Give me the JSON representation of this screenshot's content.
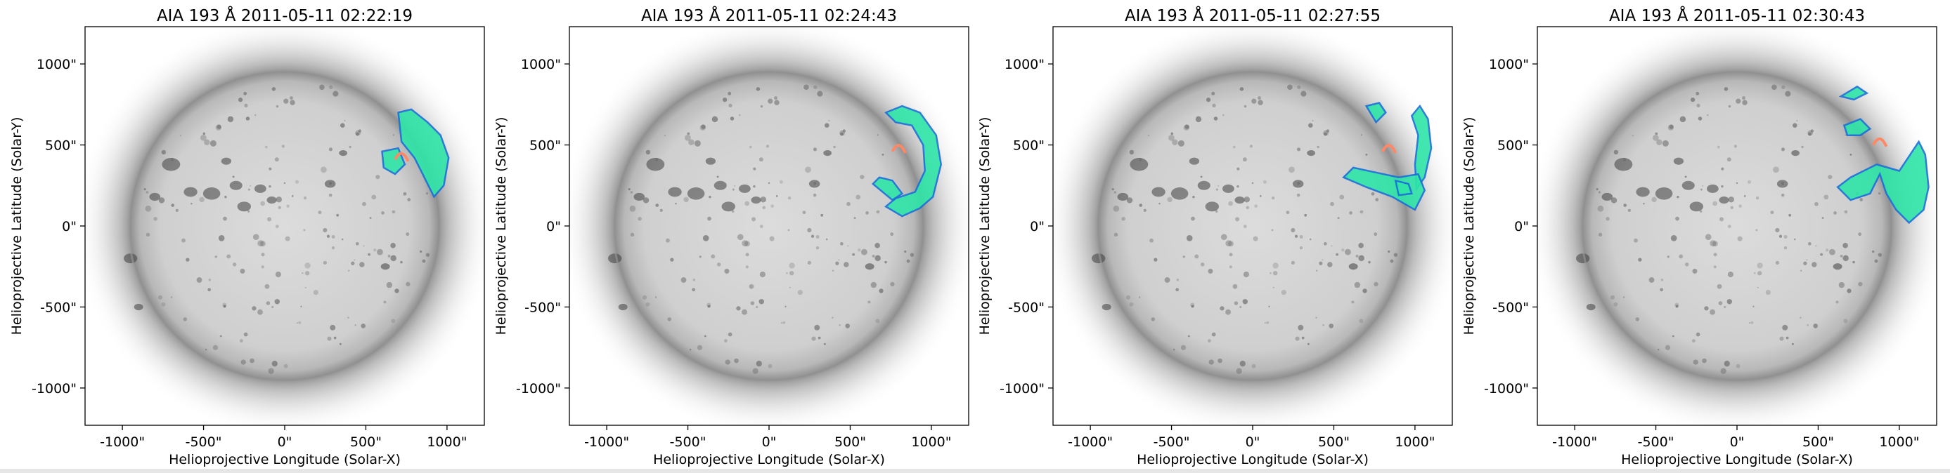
{
  "panels": [
    {
      "title": "AIA 193 Å 2011-05-11 02:22:19",
      "stage": 0
    },
    {
      "title": "AIA 193 Å 2011-05-11 02:24:43",
      "stage": 1
    },
    {
      "title": "AIA 193 Å 2011-05-11 02:27:55",
      "stage": 2
    },
    {
      "title": "AIA 193 Å 2011-05-11 02:30:43",
      "stage": 3
    }
  ],
  "axes": {
    "xlabel": "Helioprojective Longitude (Solar-X)",
    "ylabel": "Helioprojective Latitude (Solar-Y)",
    "xticks": [
      "-1000\"",
      "-500\"",
      "0\"",
      "500\"",
      "1000\""
    ],
    "yticks": [
      "1000\"",
      "500\"",
      "0\"",
      "-500\"",
      "-1000\""
    ]
  },
  "colors": {
    "disk": "#d6d6d6",
    "wavefront": "#2fe6a8",
    "wavefront_edge": "#1a70d8",
    "flare": "#ff8866"
  }
}
